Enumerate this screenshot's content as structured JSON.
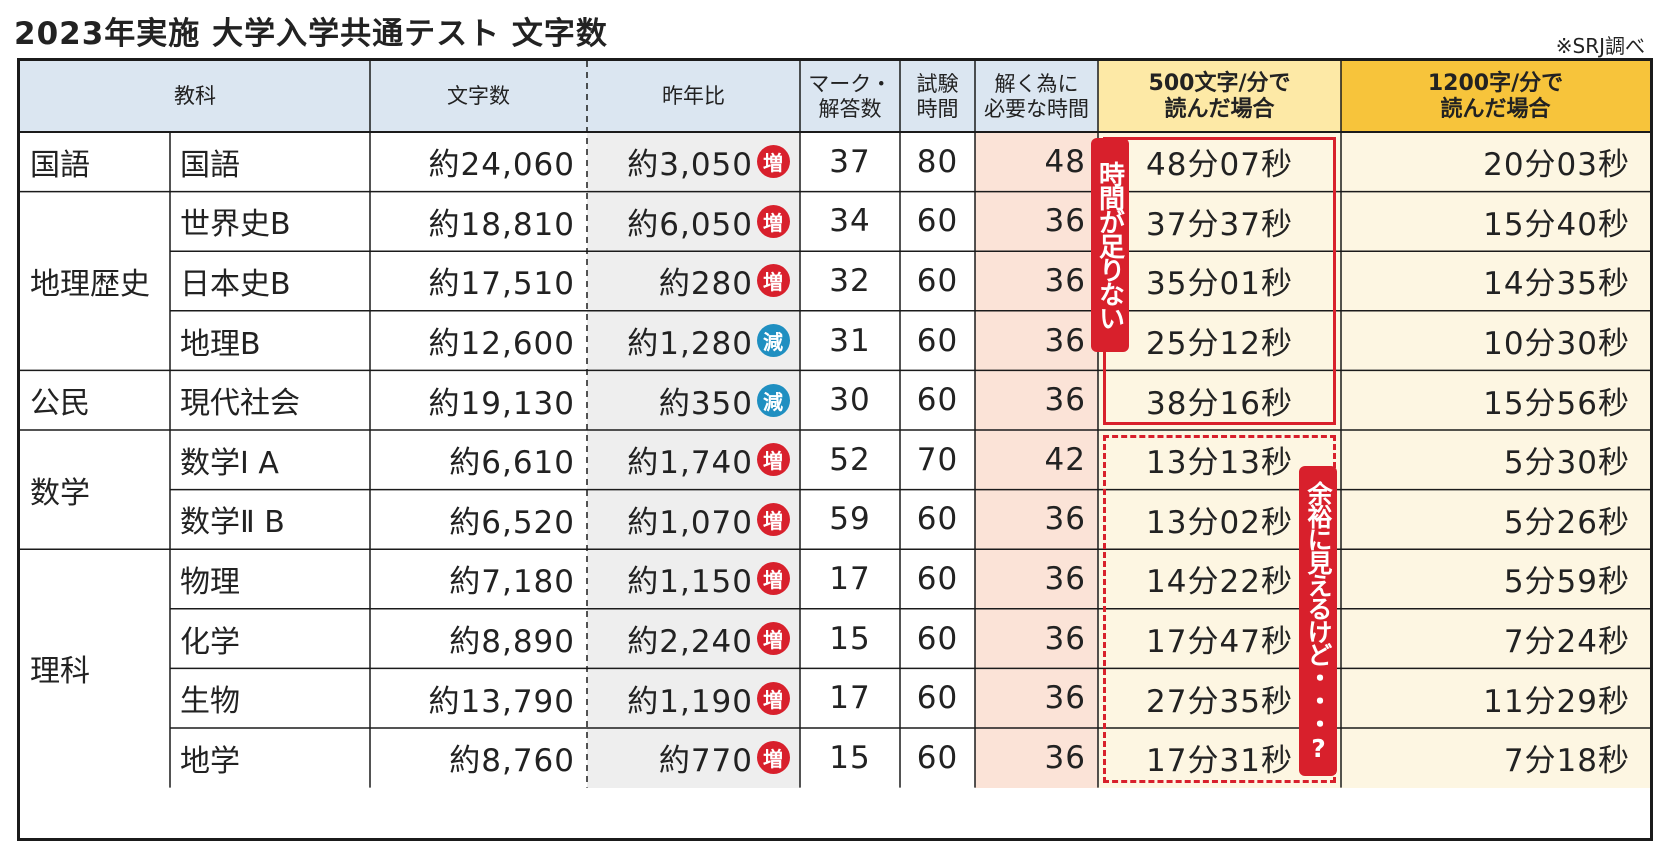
{
  "title": "2023年実施 大学入学共通テスト 文字数",
  "source": "※SRJ調べ",
  "headers": {
    "subject": "教科",
    "chars": "文字数",
    "yoy": "昨年比",
    "marks": "マーク・\n解答数",
    "time": "試験\n時間",
    "needed": "解く為に\n必要な時間",
    "at500": "500文字/分で\n読んだ場合",
    "at1200": "1200字/分で\n読んだ場合"
  },
  "groups": [
    {
      "name": "国語",
      "rows": 1
    },
    {
      "name": "地理歴史",
      "rows": 3
    },
    {
      "name": "公民",
      "rows": 1
    },
    {
      "name": "数学",
      "rows": 2
    },
    {
      "name": "理科",
      "rows": 4
    }
  ],
  "rows": [
    {
      "sub": "国語",
      "chars": "約24,060",
      "yoy": "約3,050",
      "change": "増",
      "marks": "37",
      "time": "80",
      "needed": "48",
      "at500": "48分07秒",
      "at1200": "20分03秒"
    },
    {
      "sub": "世界史B",
      "chars": "約18,810",
      "yoy": "約6,050",
      "change": "増",
      "marks": "34",
      "time": "60",
      "needed": "36",
      "at500": "37分37秒",
      "at1200": "15分40秒"
    },
    {
      "sub": "日本史B",
      "chars": "約17,510",
      "yoy": "約280",
      "change": "増",
      "marks": "32",
      "time": "60",
      "needed": "36",
      "at500": "35分01秒",
      "at1200": "14分35秒"
    },
    {
      "sub": "地理B",
      "chars": "約12,600",
      "yoy": "約1,280",
      "change": "減",
      "marks": "31",
      "time": "60",
      "needed": "36",
      "at500": "25分12秒",
      "at1200": "10分30秒"
    },
    {
      "sub": "現代社会",
      "chars": "約19,130",
      "yoy": "約350",
      "change": "減",
      "marks": "30",
      "time": "60",
      "needed": "36",
      "at500": "38分16秒",
      "at1200": "15分56秒"
    },
    {
      "sub": "数学Ⅰ A",
      "chars": "約6,610",
      "yoy": "約1,740",
      "change": "増",
      "marks": "52",
      "time": "70",
      "needed": "42",
      "at500": "13分13秒",
      "at1200": "5分30秒"
    },
    {
      "sub": "数学Ⅱ B",
      "chars": "約6,520",
      "yoy": "約1,070",
      "change": "増",
      "marks": "59",
      "time": "60",
      "needed": "36",
      "at500": "13分02秒",
      "at1200": "5分26秒"
    },
    {
      "sub": "物理",
      "chars": "約7,180",
      "yoy": "約1,150",
      "change": "増",
      "marks": "17",
      "time": "60",
      "needed": "36",
      "at500": "14分22秒",
      "at1200": "5分59秒"
    },
    {
      "sub": "化学",
      "chars": "約8,890",
      "yoy": "約2,240",
      "change": "増",
      "marks": "15",
      "time": "60",
      "needed": "36",
      "at500": "17分47秒",
      "at1200": "7分24秒"
    },
    {
      "sub": "生物",
      "chars": "約13,790",
      "yoy": "約1,190",
      "change": "増",
      "marks": "17",
      "time": "60",
      "needed": "36",
      "at500": "27分35秒",
      "at1200": "11分29秒"
    },
    {
      "sub": "地学",
      "chars": "約8,760",
      "yoy": "約770",
      "change": "増",
      "marks": "15",
      "time": "60",
      "needed": "36",
      "at500": "17分31秒",
      "at1200": "7分18秒"
    }
  ],
  "notes": {
    "insufficient": "時間が足りない",
    "looksenough": "余裕に見えるけど・・・?"
  },
  "colors": {
    "header_bg": "#dbe6f1",
    "yoy_bg": "#eeeeee",
    "needed_bg": "#fbe3d7",
    "col500_bg": "#fdf6e2",
    "col500_hdr": "#fde9a6",
    "col1200_bg": "#fdf6e2",
    "col1200_hdr": "#f7c43b",
    "increase": "#d8202c",
    "decrease": "#1f8fc1",
    "accent": "#d8202c"
  }
}
